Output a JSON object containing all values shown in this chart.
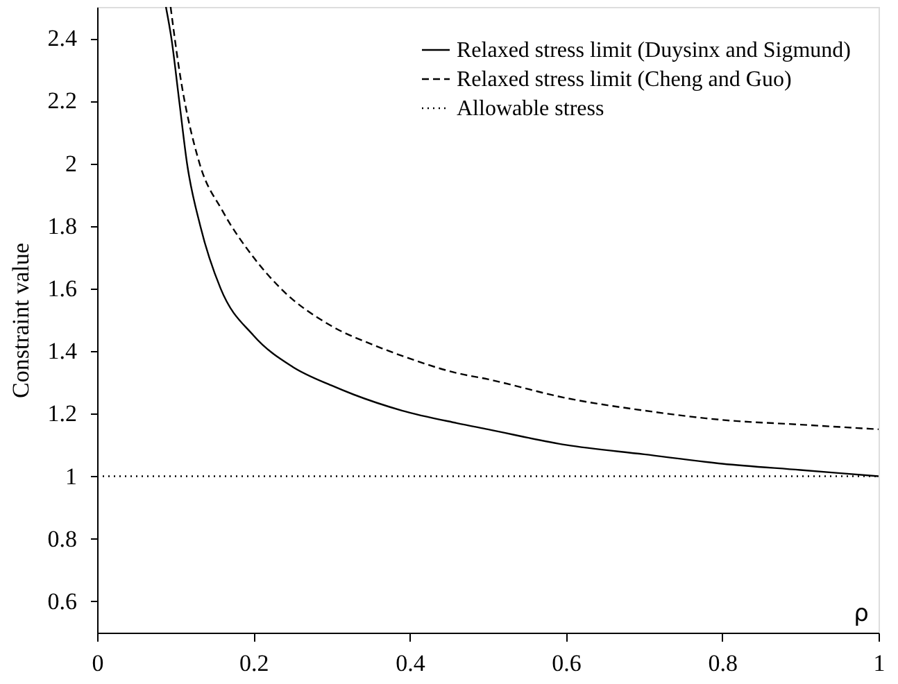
{
  "chart_data": {
    "type": "line",
    "xlabel": "ρ",
    "ylabel": "Constraint value",
    "xlim": [
      0,
      1
    ],
    "ylim": [
      0.5,
      2.5
    ],
    "xticks": [
      0,
      0.2,
      0.4,
      0.6,
      0.8,
      1
    ],
    "yticks": [
      0.6,
      0.8,
      1,
      1.2,
      1.4,
      1.6,
      1.8,
      2,
      2.2,
      2.4
    ],
    "legend": "top right",
    "grid": false,
    "series": [
      {
        "name": "Relaxed stress limit (Duysinx and Sigmund)",
        "color": "#000000",
        "line_style": "solid",
        "x": [
          0.088,
          0.095,
          0.105,
          0.115,
          0.132,
          0.158,
          0.2,
          0.25,
          0.3,
          0.39,
          0.46,
          0.5,
          0.6,
          0.7,
          0.8,
          0.9,
          1.0
        ],
        "values": [
          2.5,
          2.4,
          2.2,
          2.0,
          1.8,
          1.6,
          1.45,
          1.35,
          1.29,
          1.21,
          1.17,
          1.15,
          1.1,
          1.07,
          1.04,
          1.02,
          1.0
        ]
      },
      {
        "name": "Relaxed stress limit (Cheng and Guo)",
        "color": "#000000",
        "line_style": "dashed",
        "x": [
          0.094,
          0.105,
          0.131,
          0.16,
          0.2,
          0.235,
          0.3,
          0.353,
          0.39,
          0.46,
          0.5,
          0.6,
          0.7,
          0.8,
          0.9,
          1.0
        ],
        "values": [
          2.5,
          2.3,
          2.0,
          1.85,
          1.7,
          1.6,
          1.48,
          1.42,
          1.385,
          1.33,
          1.31,
          1.25,
          1.21,
          1.18,
          1.165,
          1.15
        ]
      },
      {
        "name": "Allowable stress",
        "color": "#000000",
        "line_style": "dotted",
        "x": [
          0,
          1
        ],
        "values": [
          1,
          1
        ]
      }
    ]
  }
}
